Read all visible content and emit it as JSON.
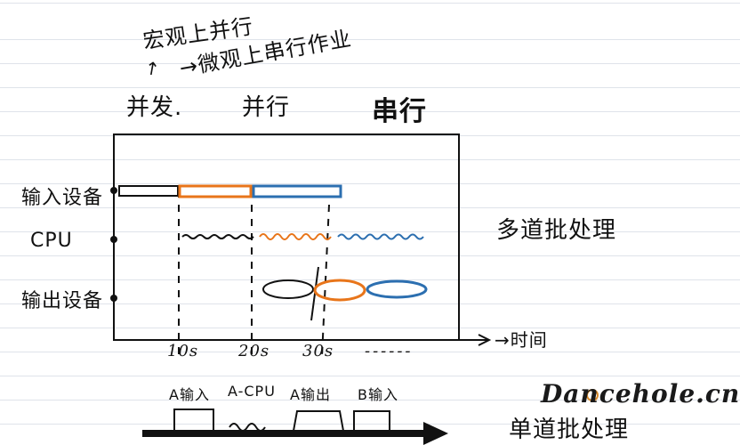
{
  "header": {
    "macro_parallel": "宏观上并行",
    "micro_serial": "→微观上串行作业",
    "arrow": "↗"
  },
  "modes": [
    "并发.",
    "并行",
    "串行"
  ],
  "rows": [
    "输入设备",
    "CPU",
    "输出设备"
  ],
  "right_note": "多道批处理",
  "time_axis": {
    "label": "→时间",
    "ticks": [
      "10s",
      "20s",
      "30s",
      "------"
    ]
  },
  "bottom_timeline": {
    "labels": [
      "A输入",
      "A-CPU",
      "A输出",
      "B输入"
    ],
    "note": "单道批处理"
  },
  "watermark": "Dancehole.cn",
  "colors": {
    "ink": "#111111",
    "job_a": "#111111",
    "job_b": "#e8751a",
    "job_c": "#2c6fb0"
  }
}
